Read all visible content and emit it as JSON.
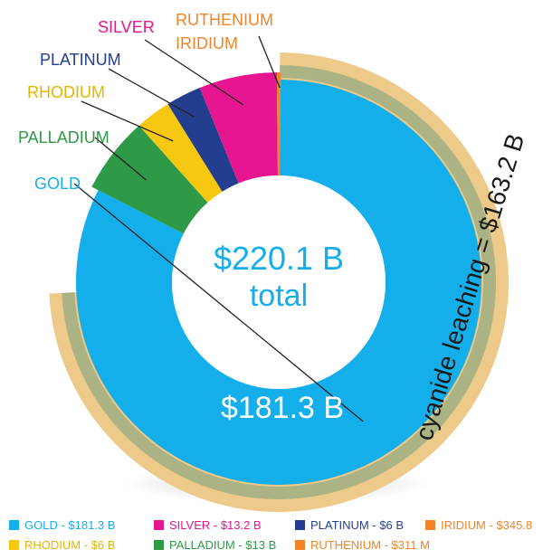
{
  "chart_data": {
    "type": "donut",
    "total_label": "$220.1 B",
    "total_sublabel": "total",
    "center_value_label": "$181.3 B",
    "arc_label": "cyanide leaching = $163.2 B",
    "arc_value_billion": 163.2,
    "total_billion": 220.1,
    "series": [
      {
        "name": "GOLD",
        "label": "GOLD",
        "value_billion": 181.3,
        "legend": "GOLD - $181.3 B",
        "color": "#14AEEA"
      },
      {
        "name": "PALLADIUM",
        "label": "PALLADIUM",
        "value_billion": 13,
        "legend": "PALLADIUM - $13 B",
        "color": "#2E9A47"
      },
      {
        "name": "RHODIUM",
        "label": "RHODIUM",
        "value_billion": 6,
        "legend": "RHODIUM - $6 B",
        "color": "#F6C812"
      },
      {
        "name": "PLATINUM",
        "label": "PLATINUM",
        "value_billion": 6,
        "legend": "PLATINUM - $6 B",
        "color": "#233E8F"
      },
      {
        "name": "SILVER",
        "label": "SILVER",
        "value_billion": 13.2,
        "legend": "SILVER - $13.2 B",
        "color": "#E5168F"
      },
      {
        "name": "IRIDIUM",
        "label": "IRIDIUM",
        "value_billion": 0.3458,
        "legend": "IRIDIUM - $345.8",
        "color": "#F08426"
      },
      {
        "name": "RUTHENIUM",
        "label": "RUTHENIUM",
        "value_billion": 0.311,
        "legend": "RUTHENIUM - $311 M",
        "color": "#F08426"
      }
    ]
  },
  "colors": {
    "gold": "#14AEEA",
    "palladium": "#2E9A47",
    "rhodium": "#F6C812",
    "platinum": "#233E8F",
    "silver": "#E5168F",
    "iridium": "#F08426",
    "ruthenium": "#F08426",
    "arc_band": "#EDC98A",
    "arc_text": "#1a1a1a",
    "center_text": "#14AEEA"
  }
}
